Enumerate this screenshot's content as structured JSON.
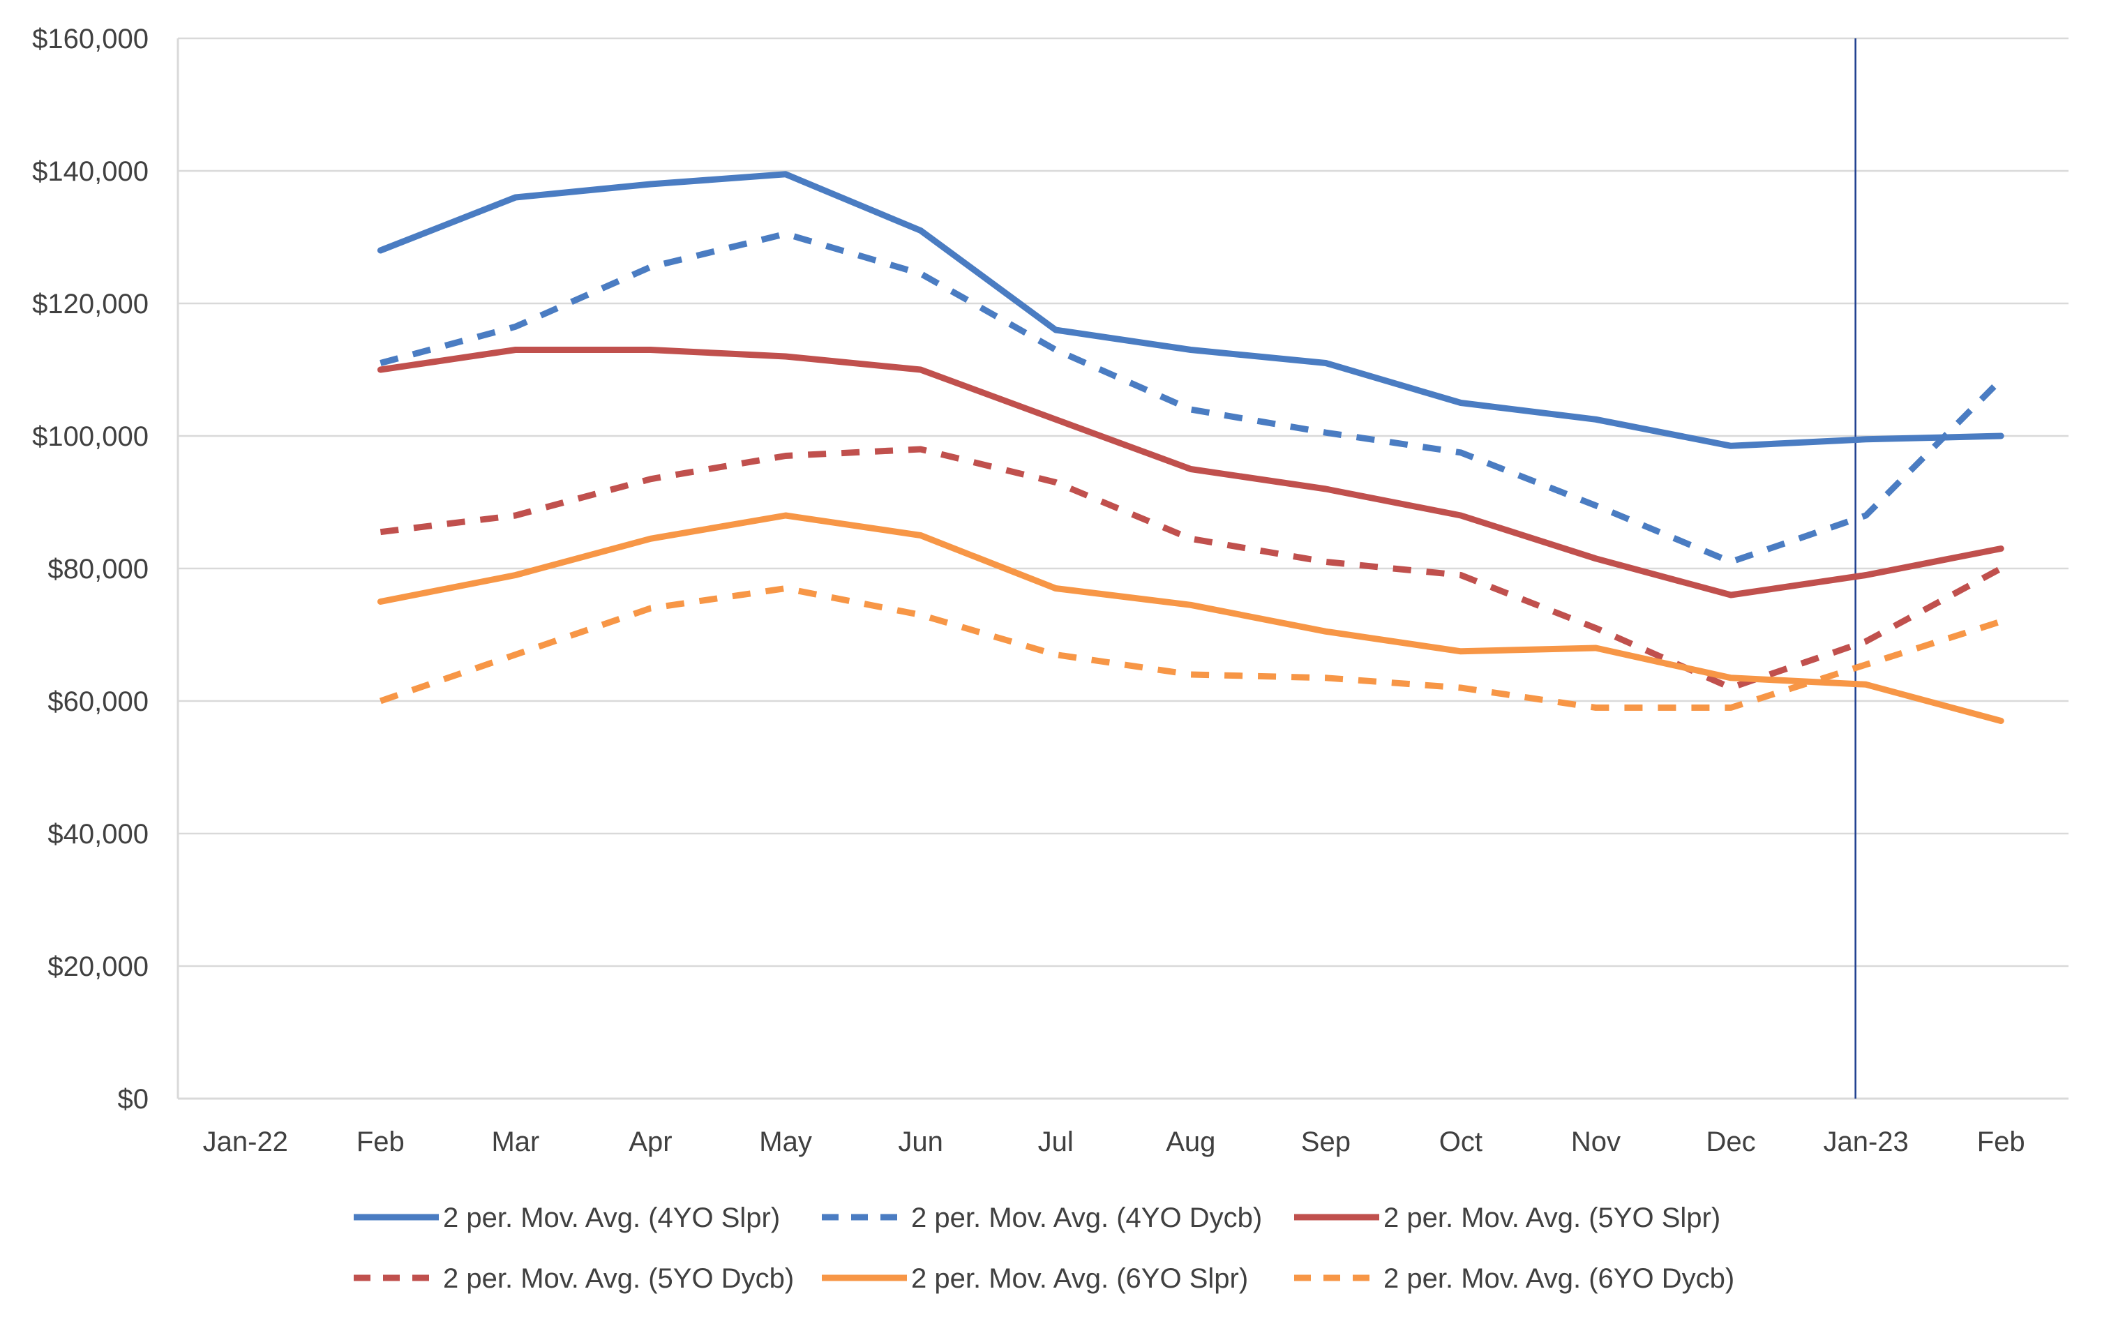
{
  "chart_data": {
    "type": "line",
    "title": "",
    "xlabel": "",
    "ylabel": "",
    "categories": [
      "Jan-22",
      "Feb",
      "Mar",
      "Apr",
      "May",
      "Jun",
      "Jul",
      "Aug",
      "Sep",
      "Oct",
      "Nov",
      "Dec",
      "Jan-23",
      "Feb"
    ],
    "ylim": [
      0,
      160000
    ],
    "y_ticks": [
      0,
      20000,
      40000,
      60000,
      80000,
      100000,
      120000,
      140000,
      160000
    ],
    "y_tick_labels": [
      "$0",
      "$20,000",
      "$40,000",
      "$60,000",
      "$80,000",
      "$100,000",
      "$120,000",
      "$140,000",
      "$160,000"
    ],
    "grid": "horizontal",
    "legend_position": "bottom",
    "vertical_marker_category": "Jan-23",
    "colors": {
      "axis": "#d9d9d9",
      "grid": "#d9d9d9",
      "marker": "#1f3f8f",
      "blue": "#4a7cc2",
      "red": "#c0504d",
      "orange": "#f79646"
    },
    "series": [
      {
        "name": "2 per. Mov. Avg. (4YO Slpr)",
        "color": "#4a7cc2",
        "dash": "solid",
        "values": [
          null,
          128000,
          136000,
          138000,
          139500,
          131000,
          116000,
          113000,
          111000,
          105000,
          102500,
          98500,
          99500,
          100000
        ]
      },
      {
        "name": "2 per. Mov. Avg. (4YO Dycb)",
        "color": "#4a7cc2",
        "dash": "dashed",
        "values": [
          null,
          111000,
          116500,
          125500,
          130500,
          124500,
          113000,
          104000,
          100500,
          97500,
          89500,
          81000,
          88000,
          108500
        ]
      },
      {
        "name": "2 per. Mov. Avg. (5YO Slpr)",
        "color": "#c0504d",
        "dash": "solid",
        "values": [
          null,
          110000,
          113000,
          113000,
          112000,
          110000,
          102500,
          95000,
          92000,
          88000,
          81500,
          76000,
          79000,
          83000
        ]
      },
      {
        "name": "2 per. Mov. Avg. (5YO Dycb)",
        "color": "#c0504d",
        "dash": "dashed",
        "values": [
          null,
          85500,
          88000,
          93500,
          97000,
          98000,
          93000,
          84500,
          81000,
          79000,
          71000,
          62000,
          69000,
          80000
        ]
      },
      {
        "name": "2 per. Mov. Avg. (6YO Slpr)",
        "color": "#f79646",
        "dash": "solid",
        "values": [
          null,
          75000,
          79000,
          84500,
          88000,
          85000,
          77000,
          74500,
          70500,
          67500,
          68000,
          63500,
          62500,
          57000
        ]
      },
      {
        "name": "2 per. Mov. Avg. (6YO Dycb)",
        "color": "#f79646",
        "dash": "dashed",
        "values": [
          null,
          60000,
          67000,
          74000,
          77000,
          73000,
          67000,
          64000,
          63500,
          62000,
          59000,
          59000,
          65500,
          72000
        ]
      }
    ]
  }
}
